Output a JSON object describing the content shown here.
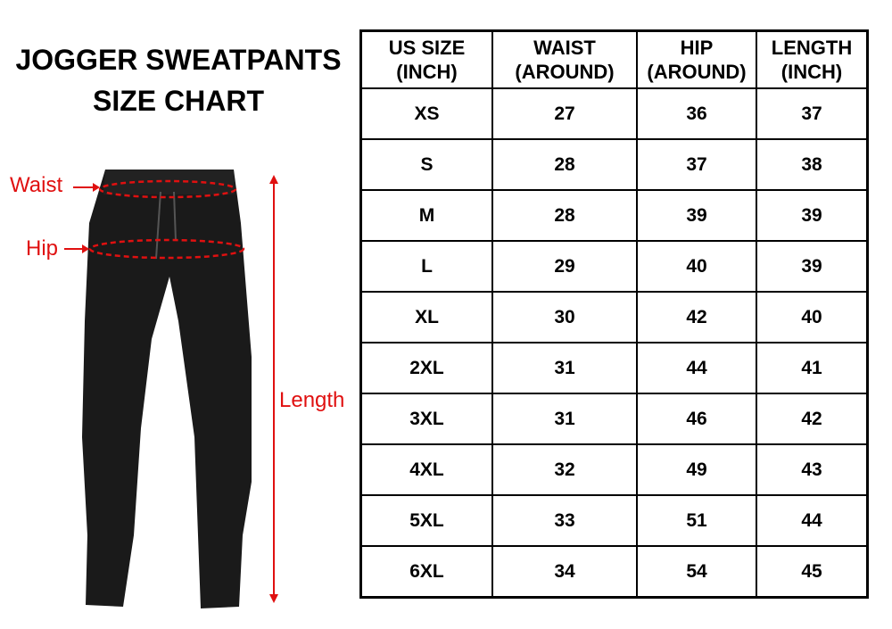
{
  "title": {
    "line1": "JOGGER SWEATPANTS",
    "line2": "SIZE CHART"
  },
  "labels": {
    "waist": "Waist",
    "hip": "Hip",
    "length": "Length"
  },
  "colors": {
    "annotation": "#e01010",
    "garment": "#1a1a1a"
  },
  "table": {
    "headers": [
      [
        "US SIZE",
        "(INCH)"
      ],
      [
        "WAIST",
        "(AROUND)"
      ],
      [
        "HIP",
        "(AROUND)"
      ],
      [
        "LENGTH",
        "(INCH)"
      ]
    ],
    "rows": [
      [
        "XS",
        "27",
        "36",
        "37"
      ],
      [
        "S",
        "28",
        "37",
        "38"
      ],
      [
        "M",
        "28",
        "39",
        "39"
      ],
      [
        "L",
        "29",
        "40",
        "39"
      ],
      [
        "XL",
        "30",
        "42",
        "40"
      ],
      [
        "2XL",
        "31",
        "44",
        "41"
      ],
      [
        "3XL",
        "31",
        "46",
        "42"
      ],
      [
        "4XL",
        "32",
        "49",
        "43"
      ],
      [
        "5XL",
        "33",
        "51",
        "44"
      ],
      [
        "6XL",
        "34",
        "54",
        "45"
      ]
    ]
  }
}
